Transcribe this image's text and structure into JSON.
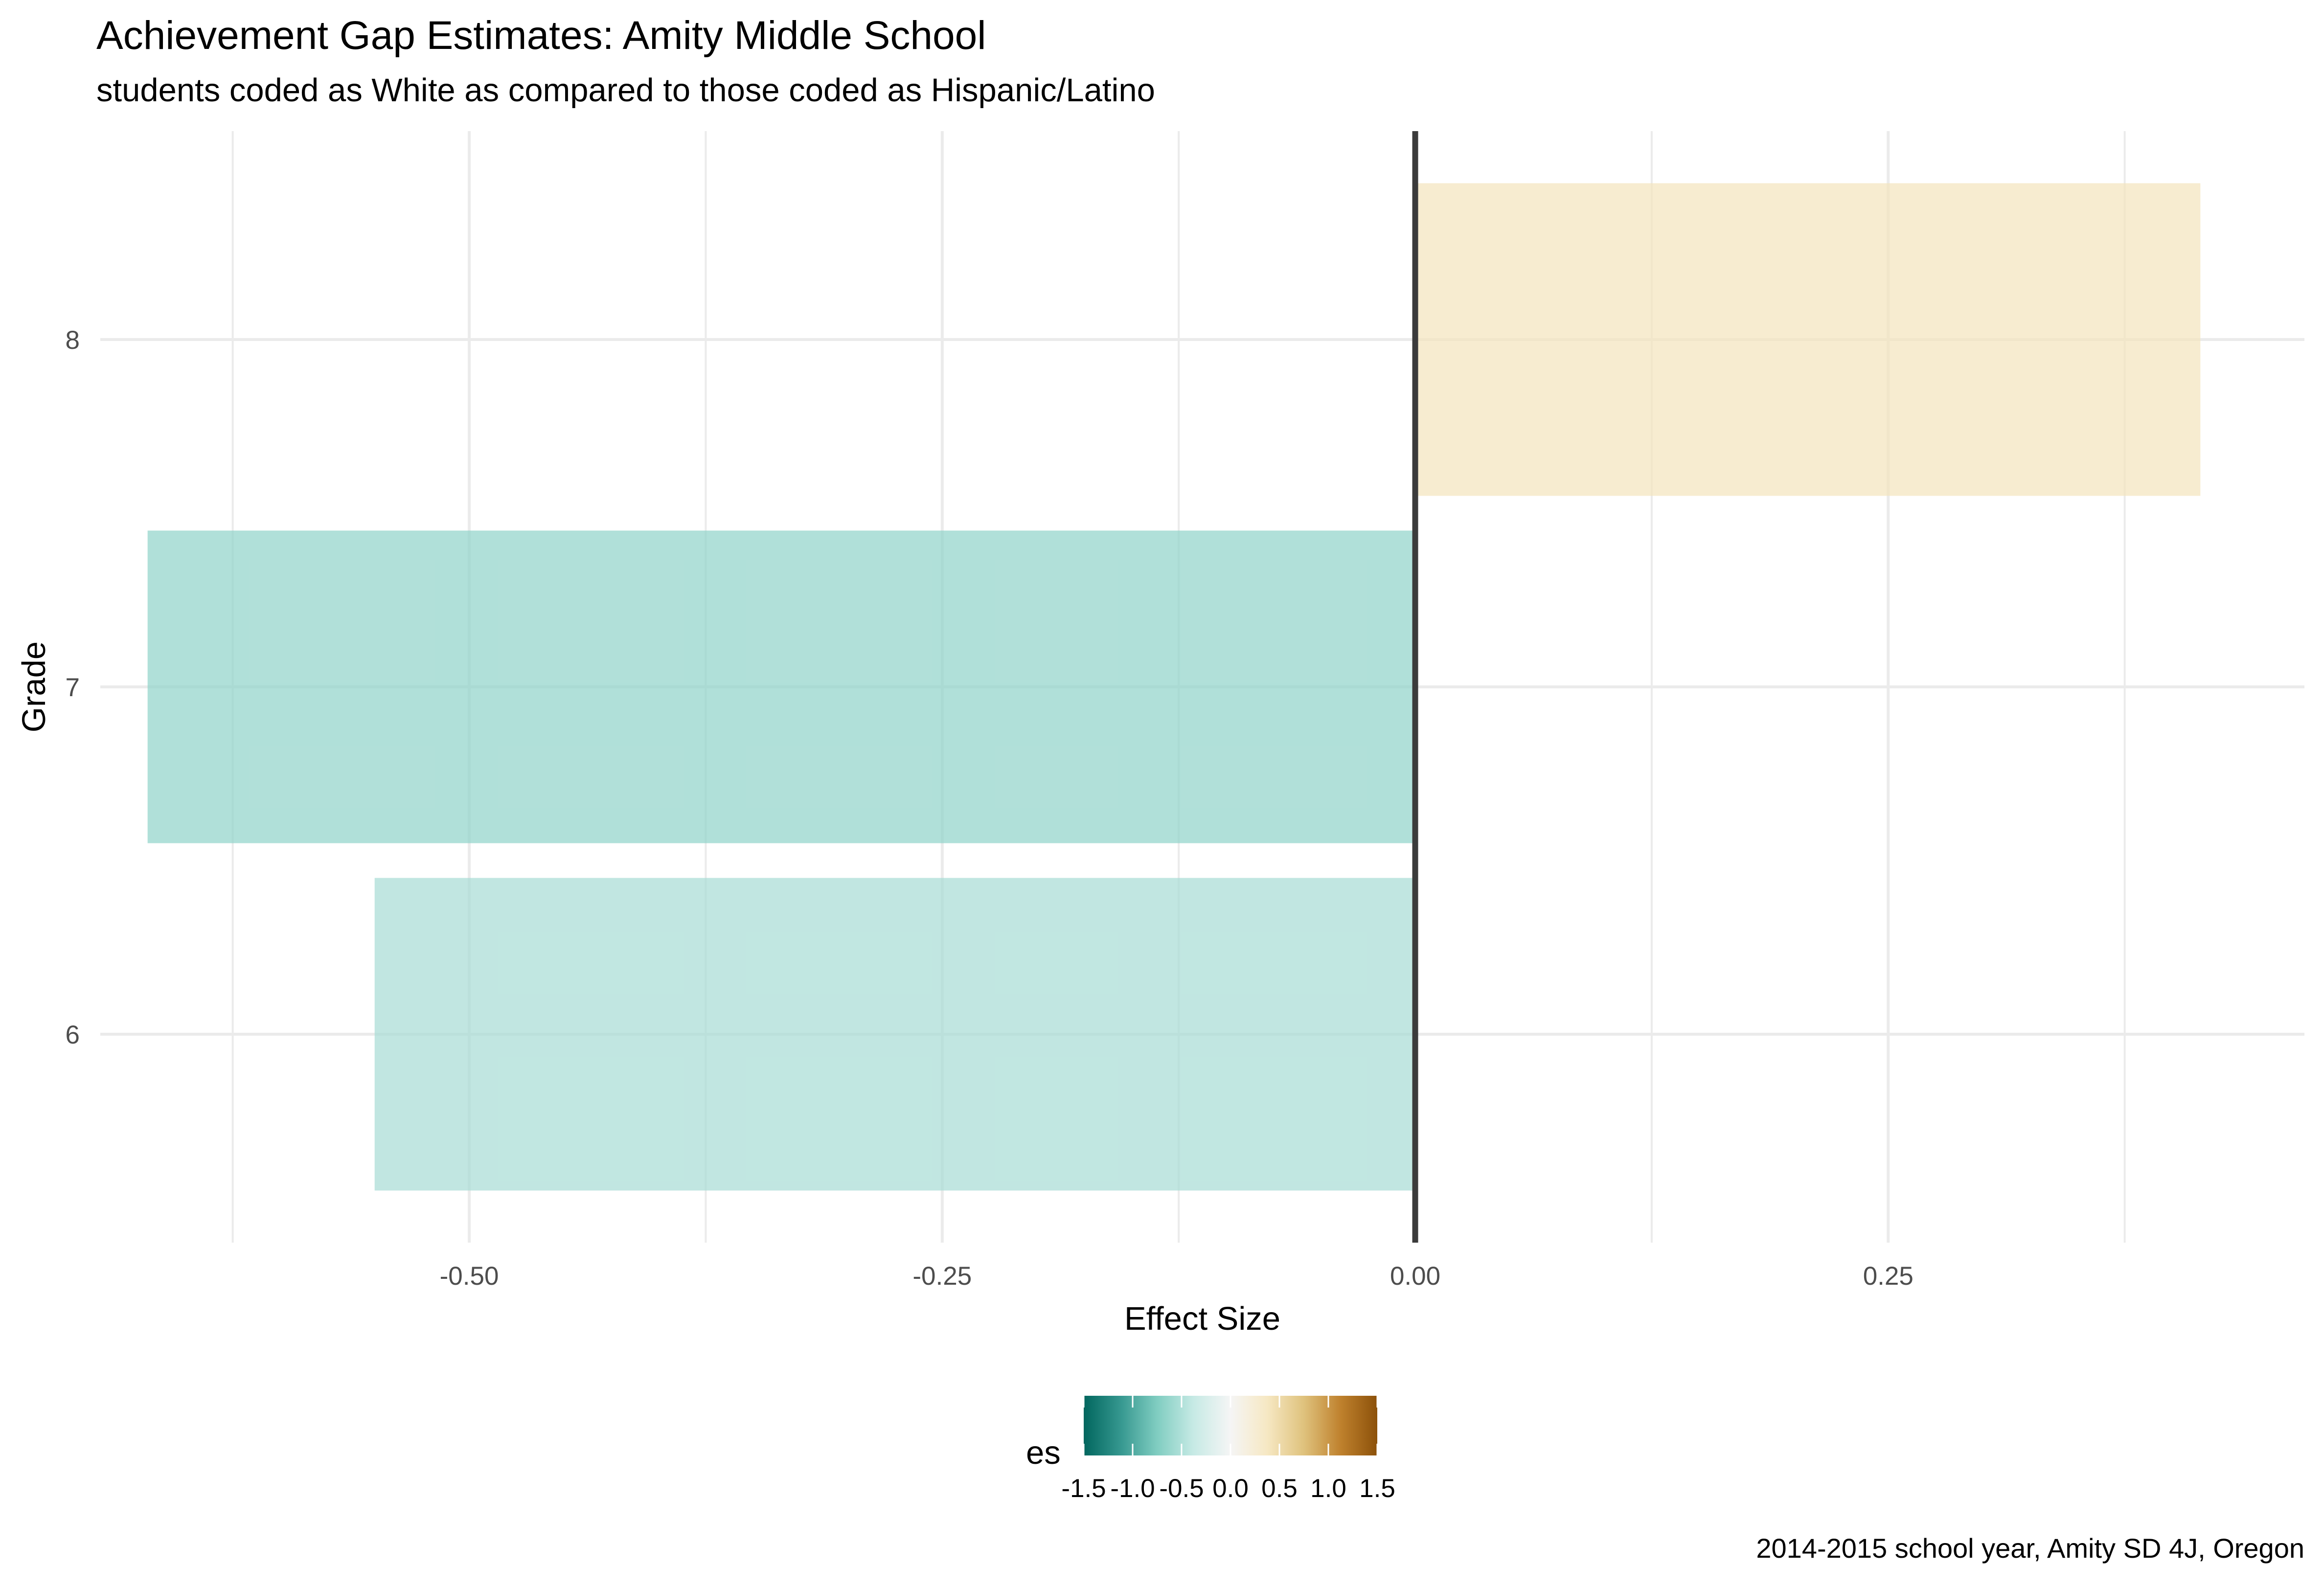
{
  "chart_data": {
    "type": "bar",
    "orientation": "horizontal",
    "title": "Achievement Gap Estimates: Amity Middle School",
    "subtitle": "students coded as White as compared to those coded as Hispanic/Latino",
    "caption": "2014-2015 school year, Amity SD 4J, Oregon",
    "xlabel": "Effect Size",
    "ylabel": "Grade",
    "categories": [
      "6",
      "7",
      "8"
    ],
    "values": [
      -0.55,
      -0.67,
      0.415
    ],
    "xlim": [
      -0.695,
      0.47
    ],
    "x_ticks": [
      -0.5,
      -0.25,
      0,
      0.25
    ],
    "x_tick_labels": [
      "-0.50",
      "-0.25",
      "0.00",
      "0.25"
    ],
    "grid": true,
    "zero_line": true,
    "legend": {
      "title": "es",
      "position": "bottom",
      "type": "colorbar",
      "range": [
        -1.5,
        1.5
      ],
      "breaks": [
        -1.5,
        -1.0,
        -0.5,
        0.0,
        0.5,
        1.0,
        1.5
      ],
      "break_labels": [
        "-1.5",
        "-1.0",
        "-0.5",
        "0.0",
        "0.5",
        "1.0",
        "1.5"
      ],
      "colors": [
        "#01665e",
        "#35978f",
        "#80cdc1",
        "#c7eae5",
        "#f5f5f5",
        "#f6e8c3",
        "#dfc27d",
        "#bf812d",
        "#8c510a"
      ]
    },
    "colors": {
      "zero_line": "#3b3b3b",
      "grid": "#ebebeb"
    }
  }
}
